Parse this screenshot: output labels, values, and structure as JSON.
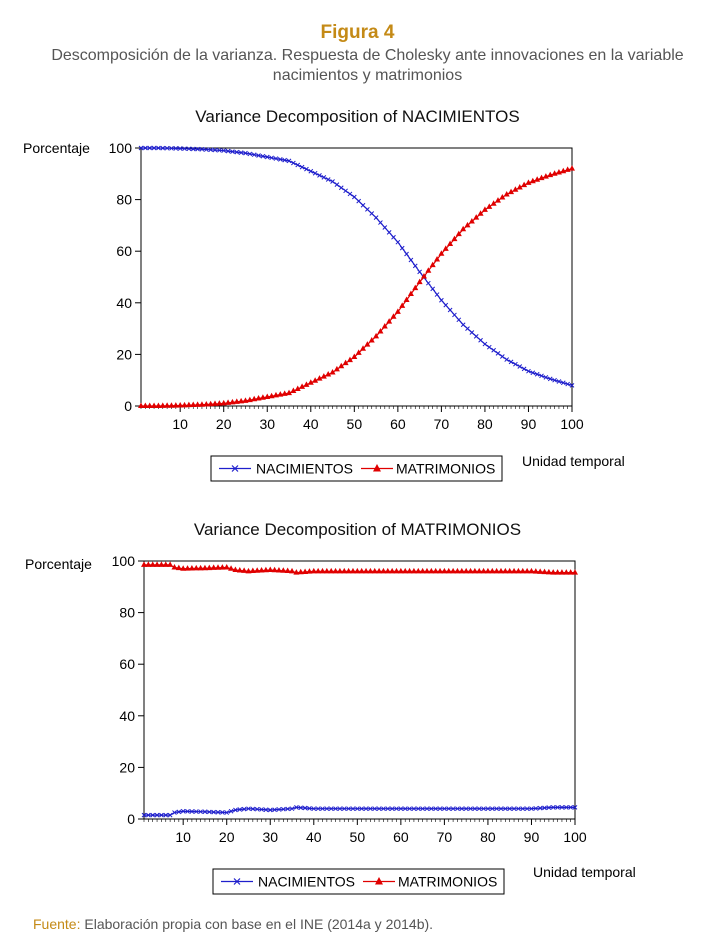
{
  "header": {
    "figure_number": "Figura 4",
    "caption": "Descomposición de la varianza. Respuesta de Cholesky ante innovaciones en la variable nacimientos y matrimonios"
  },
  "source": {
    "label": "Fuente:",
    "text": "Elaboración propia con base en el INE (2014a y 2014b)."
  },
  "colors": {
    "nacimientos": "#1f1fcc",
    "matrimonios": "#e00000",
    "accent": "#c48a16"
  },
  "chart_data": [
    {
      "type": "line",
      "title": "Variance Decomposition of NACIMIENTOS",
      "ylabel": "Porcentaje",
      "xlabel": "Unidad temporal",
      "xlim": [
        1,
        100
      ],
      "ylim": [
        0,
        100
      ],
      "xticks": [
        10,
        20,
        30,
        40,
        50,
        60,
        70,
        80,
        90,
        100
      ],
      "yticks": [
        0,
        20,
        40,
        60,
        80,
        100
      ],
      "grid": false,
      "legend": "bottom",
      "series": [
        {
          "name": "NACIMIENTOS",
          "marker": "x",
          "x": [
            1,
            5,
            10,
            15,
            20,
            25,
            30,
            35,
            40,
            45,
            50,
            55,
            60,
            65,
            70,
            75,
            80,
            85,
            90,
            95,
            100
          ],
          "values": [
            100,
            100,
            99.8,
            99.5,
            99,
            98,
            96.5,
            95,
            91,
            87,
            81,
            73,
            63.5,
            52,
            41,
            31.5,
            24,
            18,
            13.5,
            10.5,
            8
          ]
        },
        {
          "name": "MATRIMONIOS",
          "marker": "triangle",
          "x": [
            1,
            5,
            10,
            15,
            20,
            25,
            30,
            35,
            40,
            45,
            50,
            55,
            60,
            65,
            70,
            75,
            80,
            85,
            90,
            95,
            100
          ],
          "values": [
            0,
            0,
            0.2,
            0.5,
            1,
            2,
            3.5,
            5,
            9,
            13,
            19,
            27,
            36.5,
            48,
            59,
            68.5,
            76,
            82,
            86.5,
            89.5,
            92
          ]
        }
      ]
    },
    {
      "type": "line",
      "title": "Variance Decomposition of MATRIMONIOS",
      "ylabel": "Porcentaje",
      "xlabel": "Unidad temporal",
      "xlim": [
        1,
        100
      ],
      "ylim": [
        0,
        100
      ],
      "xticks": [
        10,
        20,
        30,
        40,
        50,
        60,
        70,
        80,
        90,
        100
      ],
      "yticks": [
        0,
        20,
        40,
        60,
        80,
        100
      ],
      "grid": false,
      "legend": "bottom",
      "series": [
        {
          "name": "NACIMIENTOS",
          "marker": "x",
          "x": [
            1,
            5,
            7,
            8,
            10,
            15,
            20,
            22,
            25,
            30,
            33,
            35,
            36,
            40,
            45,
            50,
            55,
            60,
            65,
            70,
            75,
            80,
            85,
            90,
            95,
            100
          ],
          "values": [
            1.5,
            1.5,
            1.5,
            2.5,
            3,
            2.8,
            2.5,
            3.5,
            4,
            3.5,
            3.8,
            4,
            4.5,
            4,
            4,
            4,
            4,
            4,
            4,
            4,
            4,
            4,
            4,
            4,
            4.5,
            4.5
          ]
        },
        {
          "name": "MATRIMONIOS",
          "marker": "triangle",
          "x": [
            1,
            5,
            7,
            8,
            10,
            15,
            20,
            22,
            25,
            30,
            33,
            35,
            36,
            40,
            45,
            50,
            55,
            60,
            65,
            70,
            75,
            80,
            85,
            90,
            95,
            100
          ],
          "values": [
            98.5,
            98.5,
            98.5,
            97.5,
            97,
            97.2,
            97.5,
            96.5,
            96,
            96.5,
            96.2,
            96,
            95.5,
            96,
            96,
            96,
            96,
            96,
            96,
            96,
            96,
            96,
            96,
            96,
            95.5,
            95.5
          ]
        }
      ]
    }
  ]
}
